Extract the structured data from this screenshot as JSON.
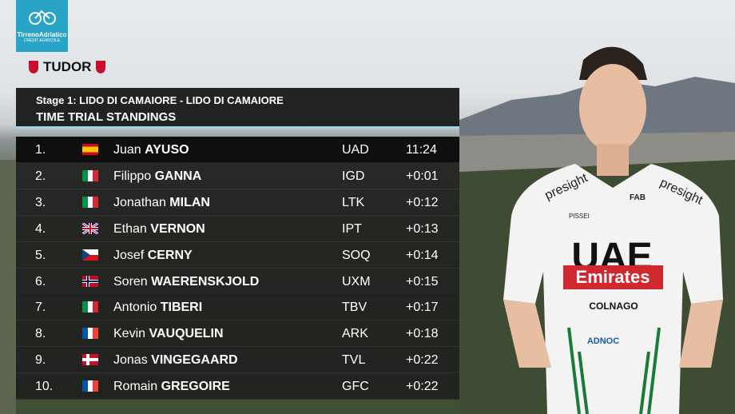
{
  "logo": {
    "title": "TirrenoAdriatico",
    "sponsor": "CRÉDIT AGRICOLE"
  },
  "brand": "TUDOR",
  "header": {
    "stage": "Stage 1: LIDO DI CAMAIORE - LIDO DI CAMAIORE",
    "title": "TIME TRIAL STANDINGS"
  },
  "table": {
    "rows": [
      {
        "rank": "1.",
        "first": "Juan",
        "last": "AYUSO",
        "team": "UAD",
        "time": "11:24"
      },
      {
        "rank": "2.",
        "first": "Filippo",
        "last": "GANNA",
        "team": "IGD",
        "time": "+0:01"
      },
      {
        "rank": "3.",
        "first": "Jonathan",
        "last": "MILAN",
        "team": "LTK",
        "time": "+0:12"
      },
      {
        "rank": "4.",
        "first": "Ethan",
        "last": "VERNON",
        "team": "IPT",
        "time": "+0:13"
      },
      {
        "rank": "5.",
        "first": "Josef",
        "last": "CERNY",
        "team": "SOQ",
        "time": "+0:14"
      },
      {
        "rank": "6.",
        "first": "Soren",
        "last": "WAERENSKJOLD",
        "team": "UXM",
        "time": "+0:15"
      },
      {
        "rank": "7.",
        "first": "Antonio",
        "last": "TIBERI",
        "team": "TBV",
        "time": "+0:17"
      },
      {
        "rank": "8.",
        "first": "Kevin",
        "last": "VAUQUELIN",
        "team": "ARK",
        "time": "+0:18"
      },
      {
        "rank": "9.",
        "first": "Jonas",
        "last": "VINGEGAARD",
        "team": "TVL",
        "time": "+0:22"
      },
      {
        "rank": "10.",
        "first": "Romain",
        "last": "GREGOIRE",
        "team": "GFC",
        "time": "+0:22"
      }
    ]
  },
  "jersey": {
    "sponsor": "presight",
    "team_top": "UAE",
    "team_bottom": "Emirates",
    "bike": "COLNAGO",
    "bank": "FAB",
    "kit": "PISSEI",
    "oil": "ADNOC"
  }
}
